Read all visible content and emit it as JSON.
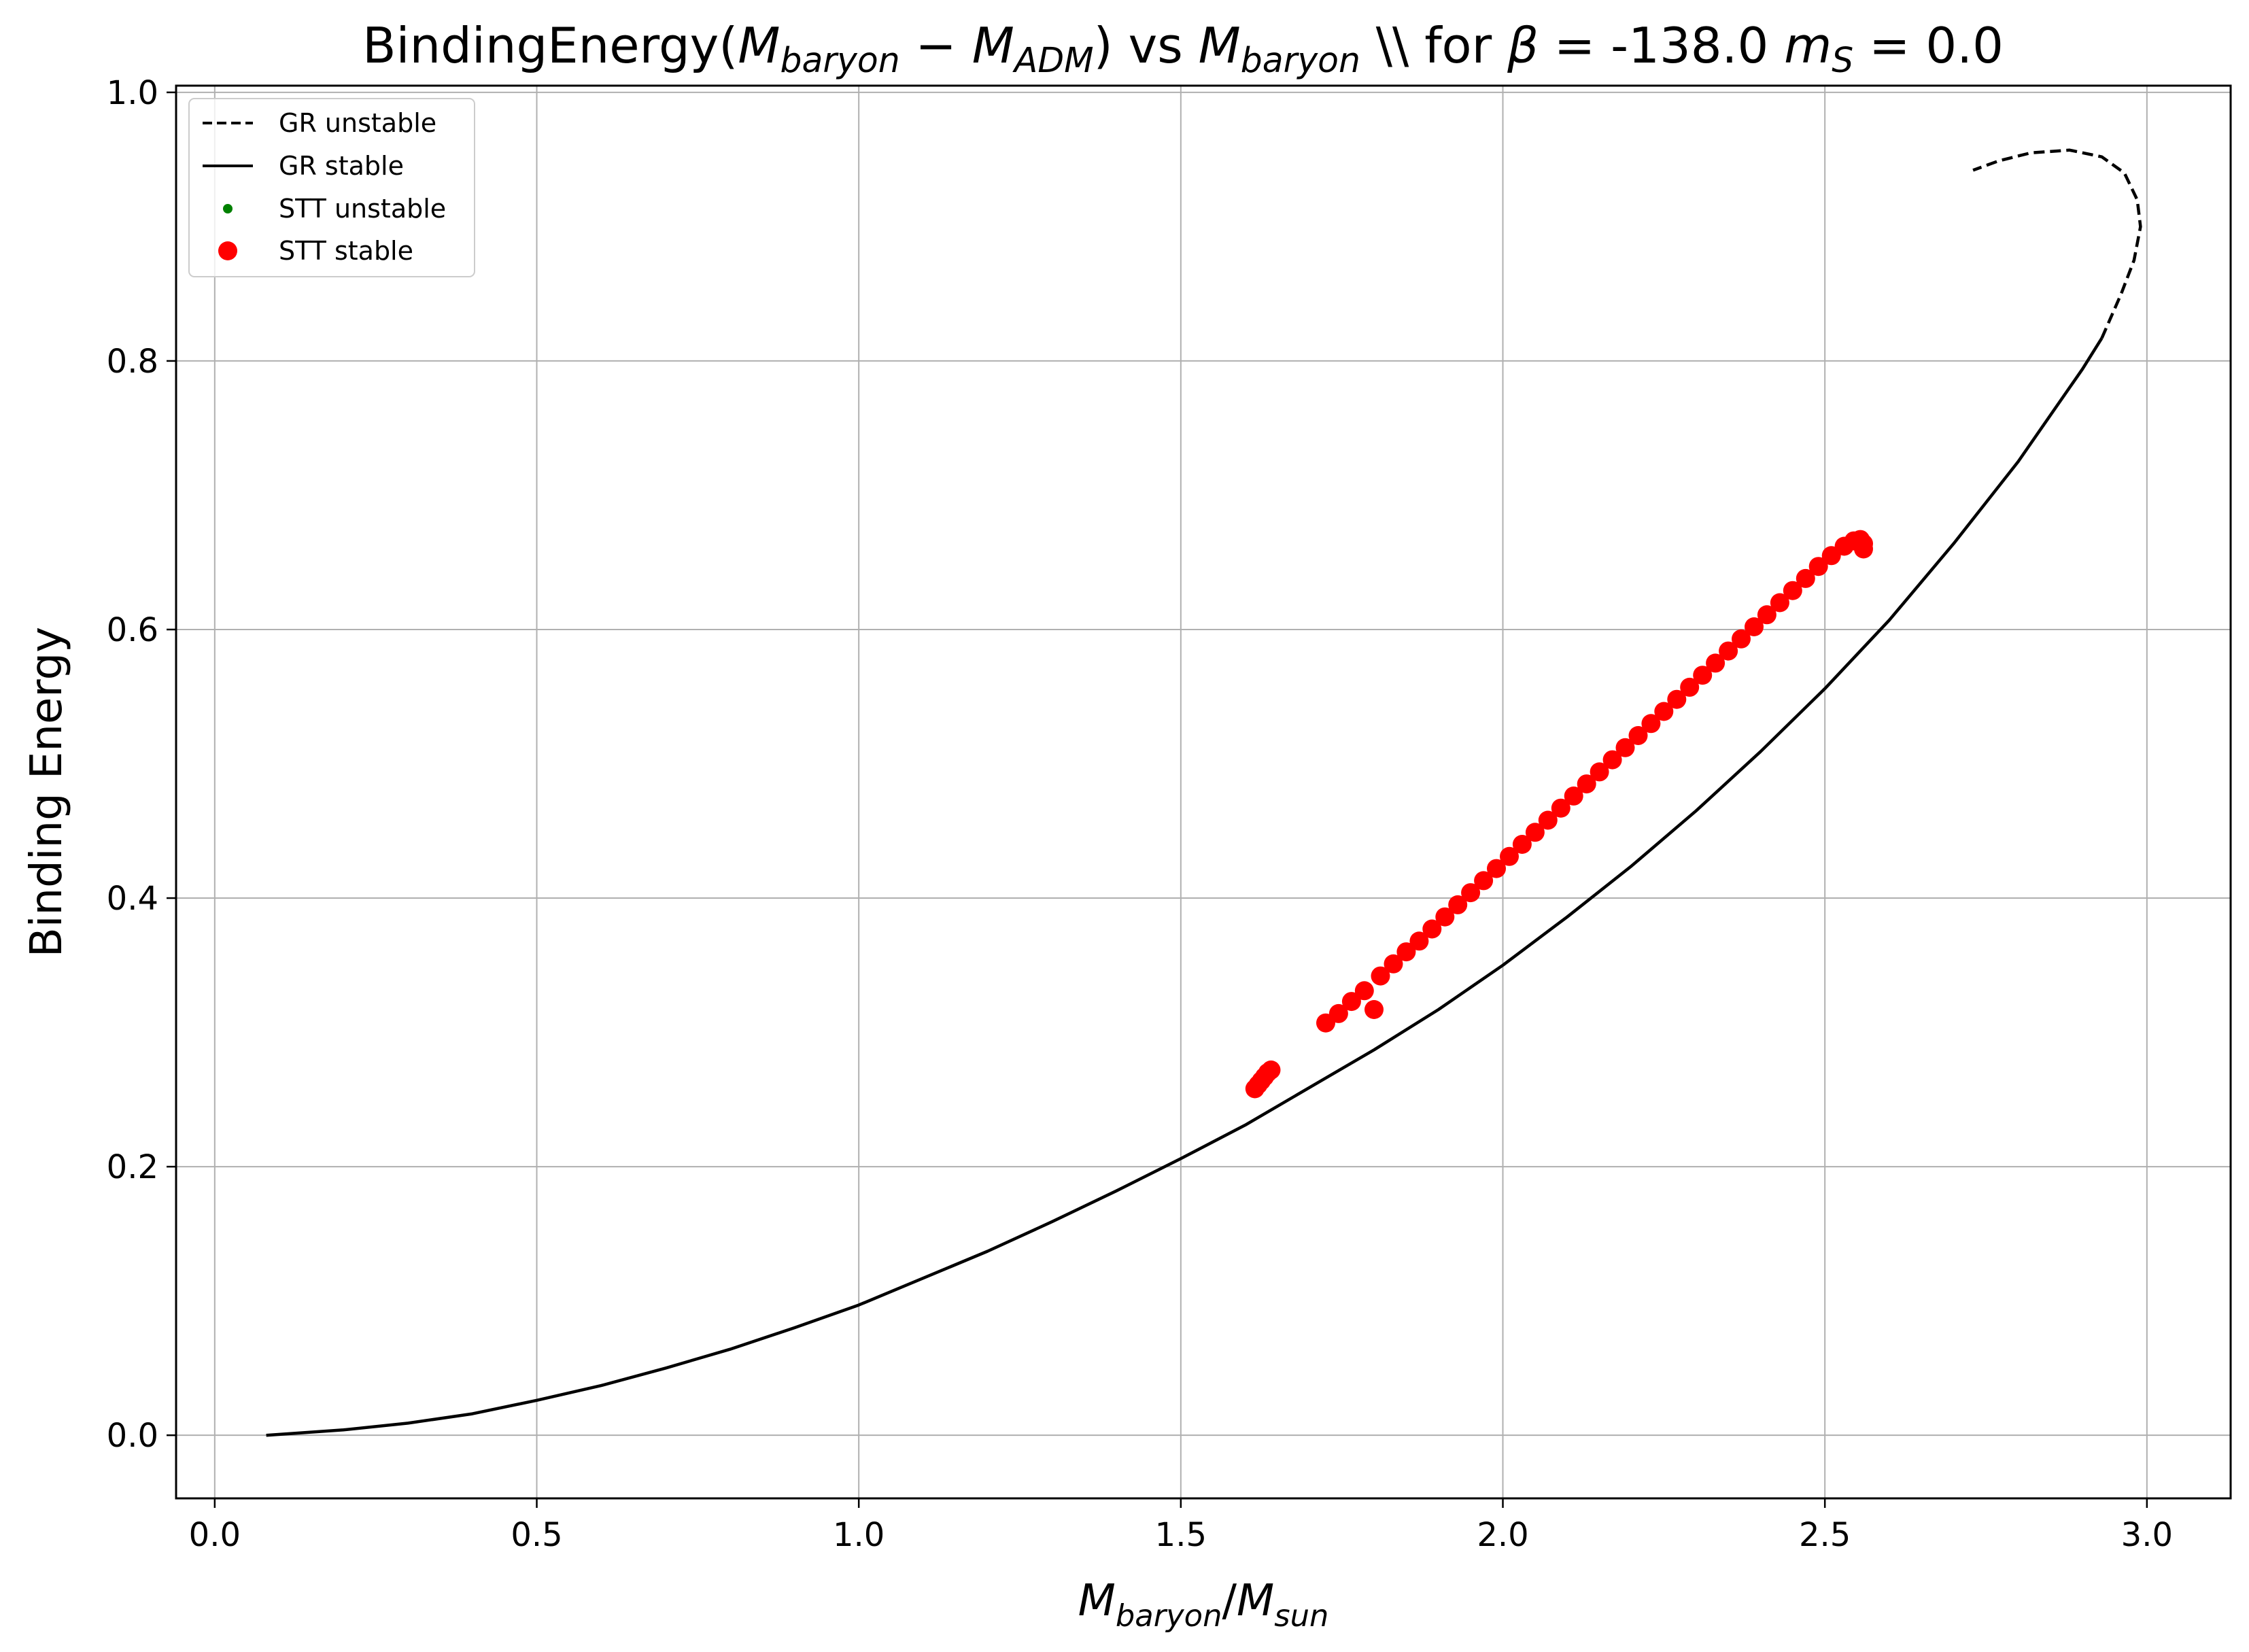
{
  "chart_data": {
    "type": "line",
    "title": {
      "text1": "BindingEnergy(",
      "mb_main": "M",
      "mb_sub": "baryon",
      "minus": " − ",
      "madm_main": "M",
      "madm_sub": "ADM",
      "text2": ") vs ",
      "mb2_main": "M",
      "mb2_sub": "baryon",
      "text3": " \\\\ for ",
      "beta": "β",
      "text4": " = -138.0 ",
      "ms_main": "m",
      "ms_sub": "S",
      "text5": " = 0.0"
    },
    "xlabel": {
      "m1": "M",
      "s1": "baryon",
      "slash": "/",
      "m2": "M",
      "s2": "sun"
    },
    "ylabel": "Binding Energy",
    "xlim": [
      -0.06,
      3.13
    ],
    "ylim": [
      -0.047,
      1.005
    ],
    "xticks": [
      {
        "value": 0.0,
        "label": "0.0"
      },
      {
        "value": 0.5,
        "label": "0.5"
      },
      {
        "value": 1.0,
        "label": "1.0"
      },
      {
        "value": 1.5,
        "label": "1.5"
      },
      {
        "value": 2.0,
        "label": "2.0"
      },
      {
        "value": 2.5,
        "label": "2.5"
      },
      {
        "value": 3.0,
        "label": "3.0"
      }
    ],
    "yticks": [
      {
        "value": 0.0,
        "label": "0.0"
      },
      {
        "value": 0.2,
        "label": "0.2"
      },
      {
        "value": 0.4,
        "label": "0.4"
      },
      {
        "value": 0.6,
        "label": "0.6"
      },
      {
        "value": 0.8,
        "label": "0.8"
      },
      {
        "value": 1.0,
        "label": "1.0"
      }
    ],
    "grid": true,
    "legend_position": "top-left",
    "legend": [
      {
        "label": "GR unstable",
        "style": "dashed-line",
        "color": "#000000"
      },
      {
        "label": "GR stable",
        "style": "solid-line",
        "color": "#000000"
      },
      {
        "label": "STT unstable",
        "style": "small-dot",
        "color": "#008000"
      },
      {
        "label": "STT stable",
        "style": "large-dot",
        "color": "#ff0000"
      }
    ],
    "series": [
      {
        "name": "GR stable",
        "style": "solid-line",
        "color": "#000000",
        "points": [
          [
            0.08,
            0.0
          ],
          [
            0.2,
            0.004
          ],
          [
            0.3,
            0.009
          ],
          [
            0.4,
            0.016
          ],
          [
            0.5,
            0.026
          ],
          [
            0.6,
            0.037
          ],
          [
            0.7,
            0.05
          ],
          [
            0.8,
            0.064
          ],
          [
            0.9,
            0.08
          ],
          [
            1.0,
            0.097
          ],
          [
            1.1,
            0.117
          ],
          [
            1.2,
            0.137
          ],
          [
            1.3,
            0.159
          ],
          [
            1.4,
            0.182
          ],
          [
            1.5,
            0.206
          ],
          [
            1.6,
            0.231
          ],
          [
            1.7,
            0.259
          ],
          [
            1.8,
            0.287
          ],
          [
            1.9,
            0.317
          ],
          [
            2.0,
            0.35
          ],
          [
            2.1,
            0.386
          ],
          [
            2.2,
            0.424
          ],
          [
            2.3,
            0.465
          ],
          [
            2.4,
            0.509
          ],
          [
            2.5,
            0.556
          ],
          [
            2.6,
            0.607
          ],
          [
            2.7,
            0.664
          ],
          [
            2.8,
            0.725
          ],
          [
            2.9,
            0.794
          ],
          [
            2.93,
            0.817
          ]
        ]
      },
      {
        "name": "GR unstable",
        "style": "dashed-line",
        "color": "#000000",
        "points": [
          [
            2.93,
            0.817
          ],
          [
            2.96,
            0.85
          ],
          [
            2.98,
            0.875
          ],
          [
            2.99,
            0.9
          ],
          [
            2.985,
            0.92
          ],
          [
            2.965,
            0.94
          ],
          [
            2.93,
            0.952
          ],
          [
            2.88,
            0.957
          ],
          [
            2.82,
            0.955
          ],
          [
            2.77,
            0.949
          ],
          [
            2.73,
            0.942
          ]
        ]
      },
      {
        "name": "STT unstable",
        "style": "small-dot",
        "color": "#008000",
        "points": []
      },
      {
        "name": "STT stable",
        "style": "large-dot",
        "color": "#ff0000",
        "points": [
          [
            1.615,
            0.258
          ],
          [
            1.62,
            0.261
          ],
          [
            1.625,
            0.264
          ],
          [
            1.63,
            0.267
          ],
          [
            1.635,
            0.27
          ],
          [
            1.64,
            0.272
          ],
          [
            1.725,
            0.307
          ],
          [
            1.745,
            0.314
          ],
          [
            1.765,
            0.323
          ],
          [
            1.785,
            0.331
          ],
          [
            1.8,
            0.317
          ],
          [
            1.81,
            0.342
          ],
          [
            1.83,
            0.351
          ],
          [
            1.85,
            0.36
          ],
          [
            1.87,
            0.368
          ],
          [
            1.89,
            0.377
          ],
          [
            1.91,
            0.386
          ],
          [
            1.93,
            0.395
          ],
          [
            1.95,
            0.404
          ],
          [
            1.97,
            0.413
          ],
          [
            1.99,
            0.422
          ],
          [
            2.01,
            0.431
          ],
          [
            2.03,
            0.44
          ],
          [
            2.05,
            0.449
          ],
          [
            2.07,
            0.458
          ],
          [
            2.09,
            0.467
          ],
          [
            2.11,
            0.476
          ],
          [
            2.13,
            0.485
          ],
          [
            2.15,
            0.494
          ],
          [
            2.17,
            0.503
          ],
          [
            2.19,
            0.512
          ],
          [
            2.21,
            0.521
          ],
          [
            2.23,
            0.53
          ],
          [
            2.25,
            0.539
          ],
          [
            2.27,
            0.548
          ],
          [
            2.29,
            0.557
          ],
          [
            2.31,
            0.566
          ],
          [
            2.33,
            0.575
          ],
          [
            2.35,
            0.584
          ],
          [
            2.37,
            0.593
          ],
          [
            2.39,
            0.602
          ],
          [
            2.41,
            0.611
          ],
          [
            2.43,
            0.62
          ],
          [
            2.45,
            0.629
          ],
          [
            2.47,
            0.638
          ],
          [
            2.49,
            0.647
          ],
          [
            2.51,
            0.655
          ],
          [
            2.53,
            0.662
          ],
          [
            2.545,
            0.666
          ],
          [
            2.555,
            0.667
          ],
          [
            2.56,
            0.664
          ],
          [
            2.56,
            0.66
          ]
        ]
      }
    ]
  }
}
